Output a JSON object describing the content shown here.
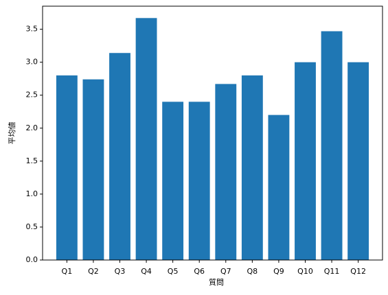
{
  "chart_data": {
    "type": "bar",
    "x_label": "質問",
    "y_label": "平均値",
    "categories": [
      "Q1",
      "Q2",
      "Q3",
      "Q4",
      "Q5",
      "Q6",
      "Q7",
      "Q8",
      "Q9",
      "Q10",
      "Q11",
      "Q12"
    ],
    "values": [
      2.8,
      2.74,
      3.14,
      3.67,
      2.4,
      2.4,
      2.67,
      2.8,
      2.2,
      3.0,
      3.47,
      3.0
    ],
    "color": "#1f77b4",
    "ylim": [
      0,
      3.85
    ],
    "yticks": [
      {
        "value": 0,
        "label": "0.0"
      },
      {
        "value": 0.5,
        "label": "0.5"
      },
      {
        "value": 1,
        "label": "1.0"
      },
      {
        "value": 1.5,
        "label": "1.5"
      },
      {
        "value": 2,
        "label": "2.0"
      },
      {
        "value": 2.5,
        "label": "2.5"
      },
      {
        "value": 3,
        "label": "3.0"
      },
      {
        "value": 3.5,
        "label": "3.5"
      }
    ],
    "grid": false
  }
}
